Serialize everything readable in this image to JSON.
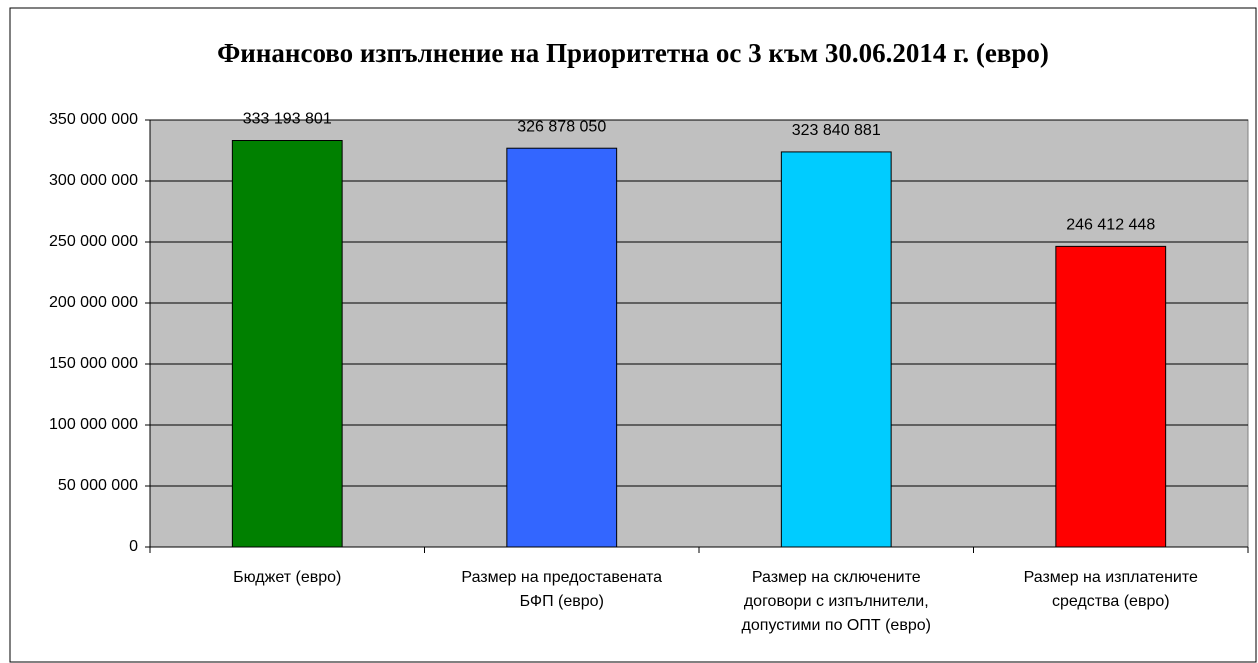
{
  "chart_data": {
    "type": "bar",
    "title": "Финансово изпълнение на Приоритетна ос 3 към 30.06.2014 г. (евро)",
    "categories": [
      "Бюджет (евро)",
      "Размер на предоставената БФП (евро)",
      "Размер на сключените договори с изпълнители, допустими по ОПТ (евро)",
      "Размер на изплатените средства (евро)"
    ],
    "values": [
      333193801,
      326878050,
      323840881,
      246412448
    ],
    "value_labels": [
      "333 193 801",
      "326 878 050",
      "323 840 881",
      "246 412 448"
    ],
    "colors": [
      "#008000",
      "#3366ff",
      "#00ccff",
      "#ff0000"
    ],
    "ylim": [
      0,
      350000000
    ],
    "yticks": [
      0,
      {
        "value": 50000000,
        "label": "50 000 000"
      },
      {
        "value": 100000000,
        "label": "100 000 000"
      },
      {
        "value": 150000000,
        "label": "150 000 000"
      },
      {
        "value": 200000000,
        "label": "200 000 000"
      },
      {
        "value": 250000000,
        "label": "250 000 000"
      },
      {
        "value": 300000000,
        "label": "300 000 000"
      },
      {
        "value": 350000000,
        "label": "350 000 000"
      }
    ],
    "grid": true,
    "plot_background": "#c0c0c0"
  }
}
